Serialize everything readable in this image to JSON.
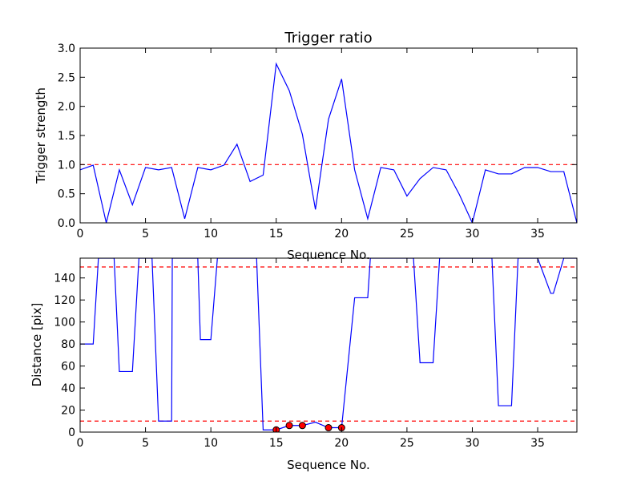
{
  "chart_data": [
    {
      "type": "line",
      "title": "Trigger ratio",
      "xlabel": "Sequence No.",
      "ylabel": "Trigger strength",
      "xlim": [
        0,
        38
      ],
      "ylim": [
        0,
        3.0
      ],
      "xticks": [
        0,
        5,
        10,
        15,
        20,
        25,
        30,
        35
      ],
      "yticks": [
        0.0,
        0.5,
        1.0,
        1.5,
        2.0,
        2.5,
        3.0
      ],
      "ytick_labels": [
        "0.0",
        "0.5",
        "1.0",
        "1.5",
        "2.0",
        "2.5",
        "3.0"
      ],
      "series": [
        {
          "color": "#0000ff",
          "x": [
            0,
            1,
            2,
            3,
            4,
            5,
            6,
            7,
            8,
            9,
            10,
            11,
            12,
            13,
            14,
            15,
            16,
            17,
            18,
            19,
            20,
            21,
            22,
            23,
            24,
            25,
            26,
            27,
            28,
            29,
            30,
            31,
            32,
            33,
            34,
            35,
            36,
            37,
            38
          ],
          "values": [
            0.91,
            0.99,
            0.0,
            0.91,
            0.31,
            0.95,
            0.91,
            0.95,
            0.07,
            0.95,
            0.91,
            0.99,
            1.35,
            0.71,
            0.82,
            2.73,
            2.27,
            1.52,
            0.23,
            1.78,
            2.47,
            0.91,
            0.07,
            0.95,
            0.91,
            0.46,
            0.76,
            0.95,
            0.91,
            0.49,
            0.0,
            0.91,
            0.84,
            0.84,
            0.95,
            0.95,
            0.88,
            0.88,
            0.0
          ]
        }
      ],
      "threshold_lines": [
        {
          "y": 1.0,
          "color": "#ff0000",
          "style": "dashed"
        }
      ]
    },
    {
      "type": "line",
      "title": "",
      "xlabel": "Sequence No.",
      "ylabel": "Distance [pix]",
      "xlim": [
        0,
        38
      ],
      "ylim": [
        0,
        158
      ],
      "xticks": [
        0,
        5,
        10,
        15,
        20,
        25,
        30,
        35
      ],
      "yticks": [
        0,
        20,
        40,
        60,
        80,
        100,
        120,
        140
      ],
      "series": [
        {
          "color": "#0000ff",
          "x": [
            0,
            1,
            1.4,
            2,
            2.6,
            3,
            4,
            4.5,
            5,
            5.5,
            6,
            7,
            7.05,
            8,
            9,
            9.2,
            10,
            10.5,
            11,
            12,
            13,
            13.5,
            14,
            15,
            16,
            17,
            18,
            19,
            20,
            21,
            22,
            22.2,
            23,
            24,
            25,
            25.5,
            26,
            27,
            27.5,
            28,
            29,
            30,
            31,
            31.5,
            32,
            33,
            33.5,
            34,
            35,
            36,
            36.2,
            37,
            38
          ],
          "values": [
            80,
            80,
            158,
            158,
            158,
            55,
            55,
            158,
            158,
            158,
            10,
            10,
            158,
            158,
            158,
            84,
            84,
            158,
            158,
            158,
            158,
            158,
            2,
            2,
            6,
            6,
            9,
            4,
            4,
            122,
            122,
            158,
            158,
            158,
            158,
            158,
            63,
            63,
            158,
            158,
            158,
            158,
            158,
            158,
            24,
            24,
            158,
            158,
            158,
            126,
            126,
            158,
            158
          ]
        },
        {
          "style": "markers",
          "color": "#ff0000",
          "x": [
            15,
            16,
            17,
            19,
            20
          ],
          "values": [
            2,
            6,
            6,
            4,
            4
          ]
        }
      ],
      "threshold_lines": [
        {
          "y": 10,
          "color": "#ff0000",
          "style": "dashed"
        },
        {
          "y": 150,
          "color": "#ff0000",
          "style": "dashed"
        }
      ]
    }
  ]
}
